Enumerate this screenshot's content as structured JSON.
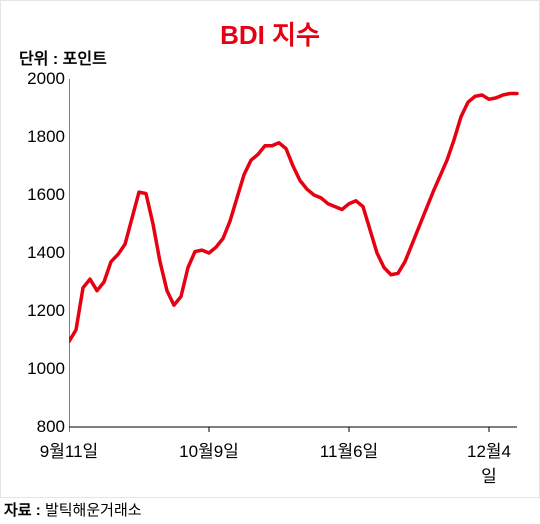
{
  "chart": {
    "type": "line",
    "title": "BDI 지수",
    "title_color": "#e60012",
    "title_fontsize": 26,
    "unit_label": "단위 : 포인트",
    "unit_fontsize": 16,
    "unit_color": "#000000",
    "background_color": "#ffffff",
    "border_color": "#e5e5e5",
    "line_color": "#e60012",
    "line_width": 3.5,
    "axis_color": "#000000",
    "tick_fontsize": 17,
    "tick_color": "#000000",
    "ylim": [
      800,
      2000
    ],
    "ytick_step": 200,
    "yticks": [
      800,
      1000,
      1200,
      1400,
      1600,
      1800,
      2000
    ],
    "x_range": [
      0,
      64
    ],
    "xticks": [
      {
        "pos": 0,
        "label": "9월11일"
      },
      {
        "pos": 20,
        "label": "10월9일"
      },
      {
        "pos": 40,
        "label": "11월6일"
      },
      {
        "pos": 60,
        "label": "12월4일"
      }
    ],
    "series": [
      {
        "x": 0,
        "y": 1095
      },
      {
        "x": 1,
        "y": 1135
      },
      {
        "x": 2,
        "y": 1280
      },
      {
        "x": 3,
        "y": 1310
      },
      {
        "x": 4,
        "y": 1270
      },
      {
        "x": 5,
        "y": 1300
      },
      {
        "x": 6,
        "y": 1370
      },
      {
        "x": 7,
        "y": 1395
      },
      {
        "x": 8,
        "y": 1430
      },
      {
        "x": 9,
        "y": 1520
      },
      {
        "x": 10,
        "y": 1610
      },
      {
        "x": 11,
        "y": 1605
      },
      {
        "x": 12,
        "y": 1500
      },
      {
        "x": 13,
        "y": 1370
      },
      {
        "x": 14,
        "y": 1270
      },
      {
        "x": 15,
        "y": 1220
      },
      {
        "x": 16,
        "y": 1250
      },
      {
        "x": 17,
        "y": 1350
      },
      {
        "x": 18,
        "y": 1405
      },
      {
        "x": 19,
        "y": 1410
      },
      {
        "x": 20,
        "y": 1400
      },
      {
        "x": 21,
        "y": 1420
      },
      {
        "x": 22,
        "y": 1450
      },
      {
        "x": 23,
        "y": 1510
      },
      {
        "x": 24,
        "y": 1590
      },
      {
        "x": 25,
        "y": 1670
      },
      {
        "x": 26,
        "y": 1720
      },
      {
        "x": 27,
        "y": 1740
      },
      {
        "x": 28,
        "y": 1770
      },
      {
        "x": 29,
        "y": 1770
      },
      {
        "x": 30,
        "y": 1780
      },
      {
        "x": 31,
        "y": 1760
      },
      {
        "x": 32,
        "y": 1700
      },
      {
        "x": 33,
        "y": 1650
      },
      {
        "x": 34,
        "y": 1620
      },
      {
        "x": 35,
        "y": 1600
      },
      {
        "x": 36,
        "y": 1590
      },
      {
        "x": 37,
        "y": 1570
      },
      {
        "x": 38,
        "y": 1560
      },
      {
        "x": 39,
        "y": 1550
      },
      {
        "x": 40,
        "y": 1570
      },
      {
        "x": 41,
        "y": 1580
      },
      {
        "x": 42,
        "y": 1560
      },
      {
        "x": 43,
        "y": 1480
      },
      {
        "x": 44,
        "y": 1400
      },
      {
        "x": 45,
        "y": 1350
      },
      {
        "x": 46,
        "y": 1325
      },
      {
        "x": 47,
        "y": 1330
      },
      {
        "x": 48,
        "y": 1370
      },
      {
        "x": 49,
        "y": 1430
      },
      {
        "x": 50,
        "y": 1490
      },
      {
        "x": 51,
        "y": 1550
      },
      {
        "x": 52,
        "y": 1610
      },
      {
        "x": 53,
        "y": 1665
      },
      {
        "x": 54,
        "y": 1720
      },
      {
        "x": 55,
        "y": 1790
      },
      {
        "x": 56,
        "y": 1870
      },
      {
        "x": 57,
        "y": 1920
      },
      {
        "x": 58,
        "y": 1940
      },
      {
        "x": 59,
        "y": 1945
      },
      {
        "x": 60,
        "y": 1930
      },
      {
        "x": 61,
        "y": 1935
      },
      {
        "x": 62,
        "y": 1945
      },
      {
        "x": 63,
        "y": 1950
      },
      {
        "x": 64,
        "y": 1950
      }
    ]
  },
  "source": {
    "label": "자료 :",
    "value": "발틱해운거래소",
    "fontsize": 15,
    "color": "#000000"
  }
}
